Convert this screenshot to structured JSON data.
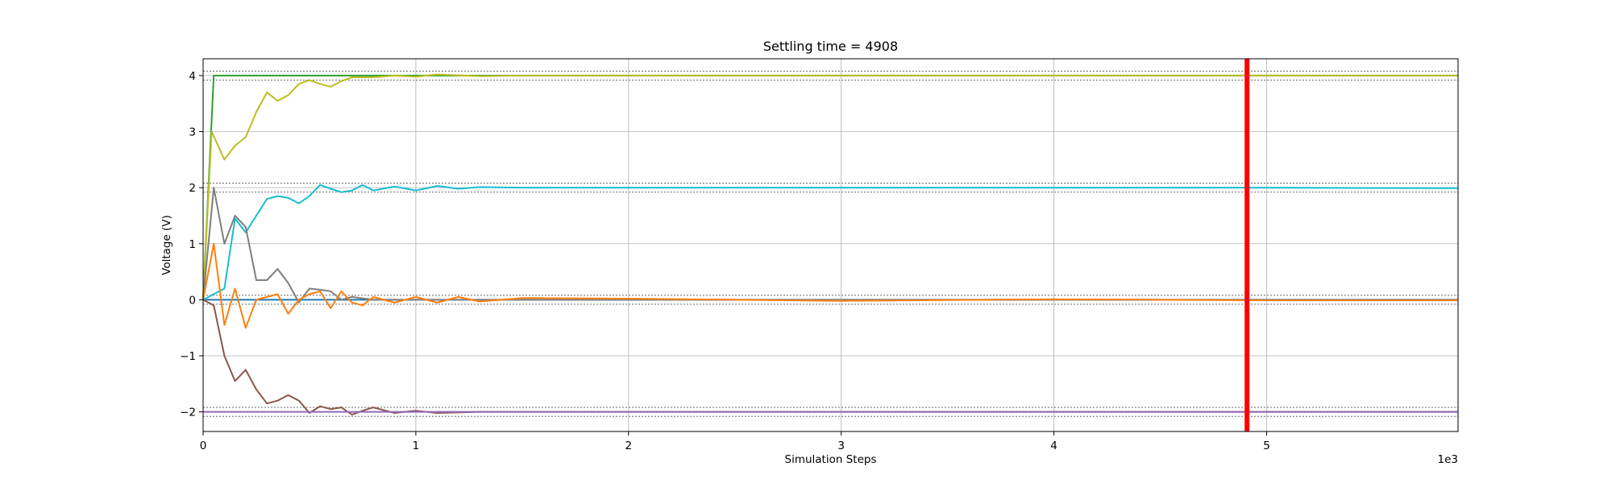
{
  "chart_data": {
    "type": "line",
    "title": "Settling time = 4908",
    "xlabel": "Simulation Steps",
    "ylabel": "Voltage (V)",
    "x_offset_label": "1e3",
    "xlim": [
      0,
      5.9
    ],
    "ylim": [
      -2.35,
      4.3
    ],
    "x_ticks": [
      0,
      1,
      2,
      3,
      4,
      5
    ],
    "x_tick_labels": [
      "0",
      "1",
      "2",
      "3",
      "4",
      "5"
    ],
    "y_ticks": [
      -2,
      -1,
      0,
      1,
      2,
      3,
      4
    ],
    "y_tick_labels": [
      "−2",
      "−1",
      "0",
      "1",
      "2",
      "3",
      "4"
    ],
    "grid": true,
    "settling_time_marker": {
      "x": 4.908,
      "color": "#ff0000"
    },
    "tolerance_bands": [
      {
        "center": 4,
        "lower": 3.92,
        "upper": 4.08
      },
      {
        "center": 2,
        "lower": 1.92,
        "upper": 2.08
      },
      {
        "center": 0,
        "lower": -0.08,
        "upper": 0.08
      },
      {
        "center": -2,
        "lower": -2.08,
        "upper": -1.92
      }
    ],
    "series": [
      {
        "color": "#1f77b4",
        "x": [
          0,
          5.9
        ],
        "y": [
          0,
          0
        ]
      },
      {
        "color": "#2ca02c",
        "x": [
          0,
          0.05,
          0.1,
          5.9
        ],
        "y": [
          0,
          4.0,
          4.0,
          4.0
        ]
      },
      {
        "color": "#bcbd22",
        "x": [
          0,
          0.04,
          0.1,
          0.15,
          0.2,
          0.25,
          0.3,
          0.35,
          0.4,
          0.45,
          0.5,
          0.55,
          0.6,
          0.65,
          0.7,
          0.75,
          0.8,
          0.9,
          1.0,
          1.1,
          1.3,
          1.5,
          5.9
        ],
        "y": [
          0,
          3.0,
          2.5,
          2.75,
          2.9,
          3.35,
          3.7,
          3.55,
          3.65,
          3.85,
          3.92,
          3.85,
          3.8,
          3.9,
          3.97,
          3.97,
          3.97,
          4.0,
          3.98,
          4.02,
          3.99,
          4.0,
          4.0
        ]
      },
      {
        "color": "#17becf",
        "x": [
          0,
          0.05,
          0.1,
          0.15,
          0.2,
          0.25,
          0.3,
          0.35,
          0.4,
          0.45,
          0.5,
          0.55,
          0.6,
          0.65,
          0.7,
          0.75,
          0.8,
          0.9,
          1.0,
          1.1,
          1.2,
          1.3,
          1.5,
          2.0,
          3.0,
          4.0,
          5.0,
          5.9
        ],
        "y": [
          0,
          0.1,
          0.2,
          1.45,
          1.2,
          1.5,
          1.8,
          1.85,
          1.82,
          1.72,
          1.85,
          2.05,
          1.98,
          1.92,
          1.95,
          2.05,
          1.95,
          2.02,
          1.95,
          2.03,
          1.98,
          2.01,
          2.0,
          2.0,
          2.0,
          2.0,
          2.0,
          1.99
        ]
      },
      {
        "color": "#7f7f7f",
        "x": [
          0,
          0.05,
          0.1,
          0.15,
          0.2,
          0.25,
          0.3,
          0.35,
          0.4,
          0.45,
          0.5,
          0.55,
          0.6,
          0.65,
          0.7,
          0.8,
          1.0,
          2.0,
          5.9
        ],
        "y": [
          0,
          2.0,
          1.0,
          1.5,
          1.3,
          0.35,
          0.35,
          0.55,
          0.3,
          -0.05,
          0.2,
          0.18,
          0.15,
          0.0,
          0.05,
          0.0,
          0.0,
          0.0,
          0.0
        ]
      },
      {
        "color": "#ff7f0e",
        "x": [
          0,
          0.05,
          0.1,
          0.15,
          0.2,
          0.25,
          0.3,
          0.35,
          0.4,
          0.45,
          0.5,
          0.55,
          0.6,
          0.65,
          0.7,
          0.75,
          0.8,
          0.9,
          1.0,
          1.1,
          1.2,
          1.3,
          1.5,
          2.0,
          3.0,
          4.0,
          5.0,
          5.9
        ],
        "y": [
          0,
          1.0,
          -0.45,
          0.2,
          -0.5,
          0.0,
          0.05,
          0.1,
          -0.25,
          0.0,
          0.1,
          0.15,
          -0.15,
          0.15,
          -0.05,
          -0.1,
          0.05,
          -0.05,
          0.05,
          -0.05,
          0.05,
          -0.03,
          0.03,
          0.02,
          -0.02,
          0.01,
          -0.01,
          -0.01
        ]
      },
      {
        "color": "#8c564b",
        "x": [
          0,
          0.05,
          0.1,
          0.15,
          0.2,
          0.25,
          0.3,
          0.35,
          0.4,
          0.45,
          0.5,
          0.55,
          0.6,
          0.65,
          0.7,
          0.75,
          0.8,
          0.9,
          1.0,
          1.1,
          1.3,
          1.5,
          2.0,
          3.0,
          4.0,
          5.0,
          5.9
        ],
        "y": [
          0,
          -0.1,
          -1.0,
          -1.45,
          -1.25,
          -1.6,
          -1.85,
          -1.8,
          -1.7,
          -1.8,
          -2.02,
          -1.9,
          -1.95,
          -1.92,
          -2.05,
          -1.98,
          -1.92,
          -2.02,
          -1.98,
          -2.02,
          -2.0,
          -2.0,
          -2.0,
          -2.0,
          -2.0,
          -2.0,
          -2.0
        ]
      },
      {
        "color": "#9467bd",
        "x": [
          0,
          4.9,
          5.9
        ],
        "y": [
          -2.0,
          -2.0,
          -2.0
        ]
      }
    ]
  }
}
